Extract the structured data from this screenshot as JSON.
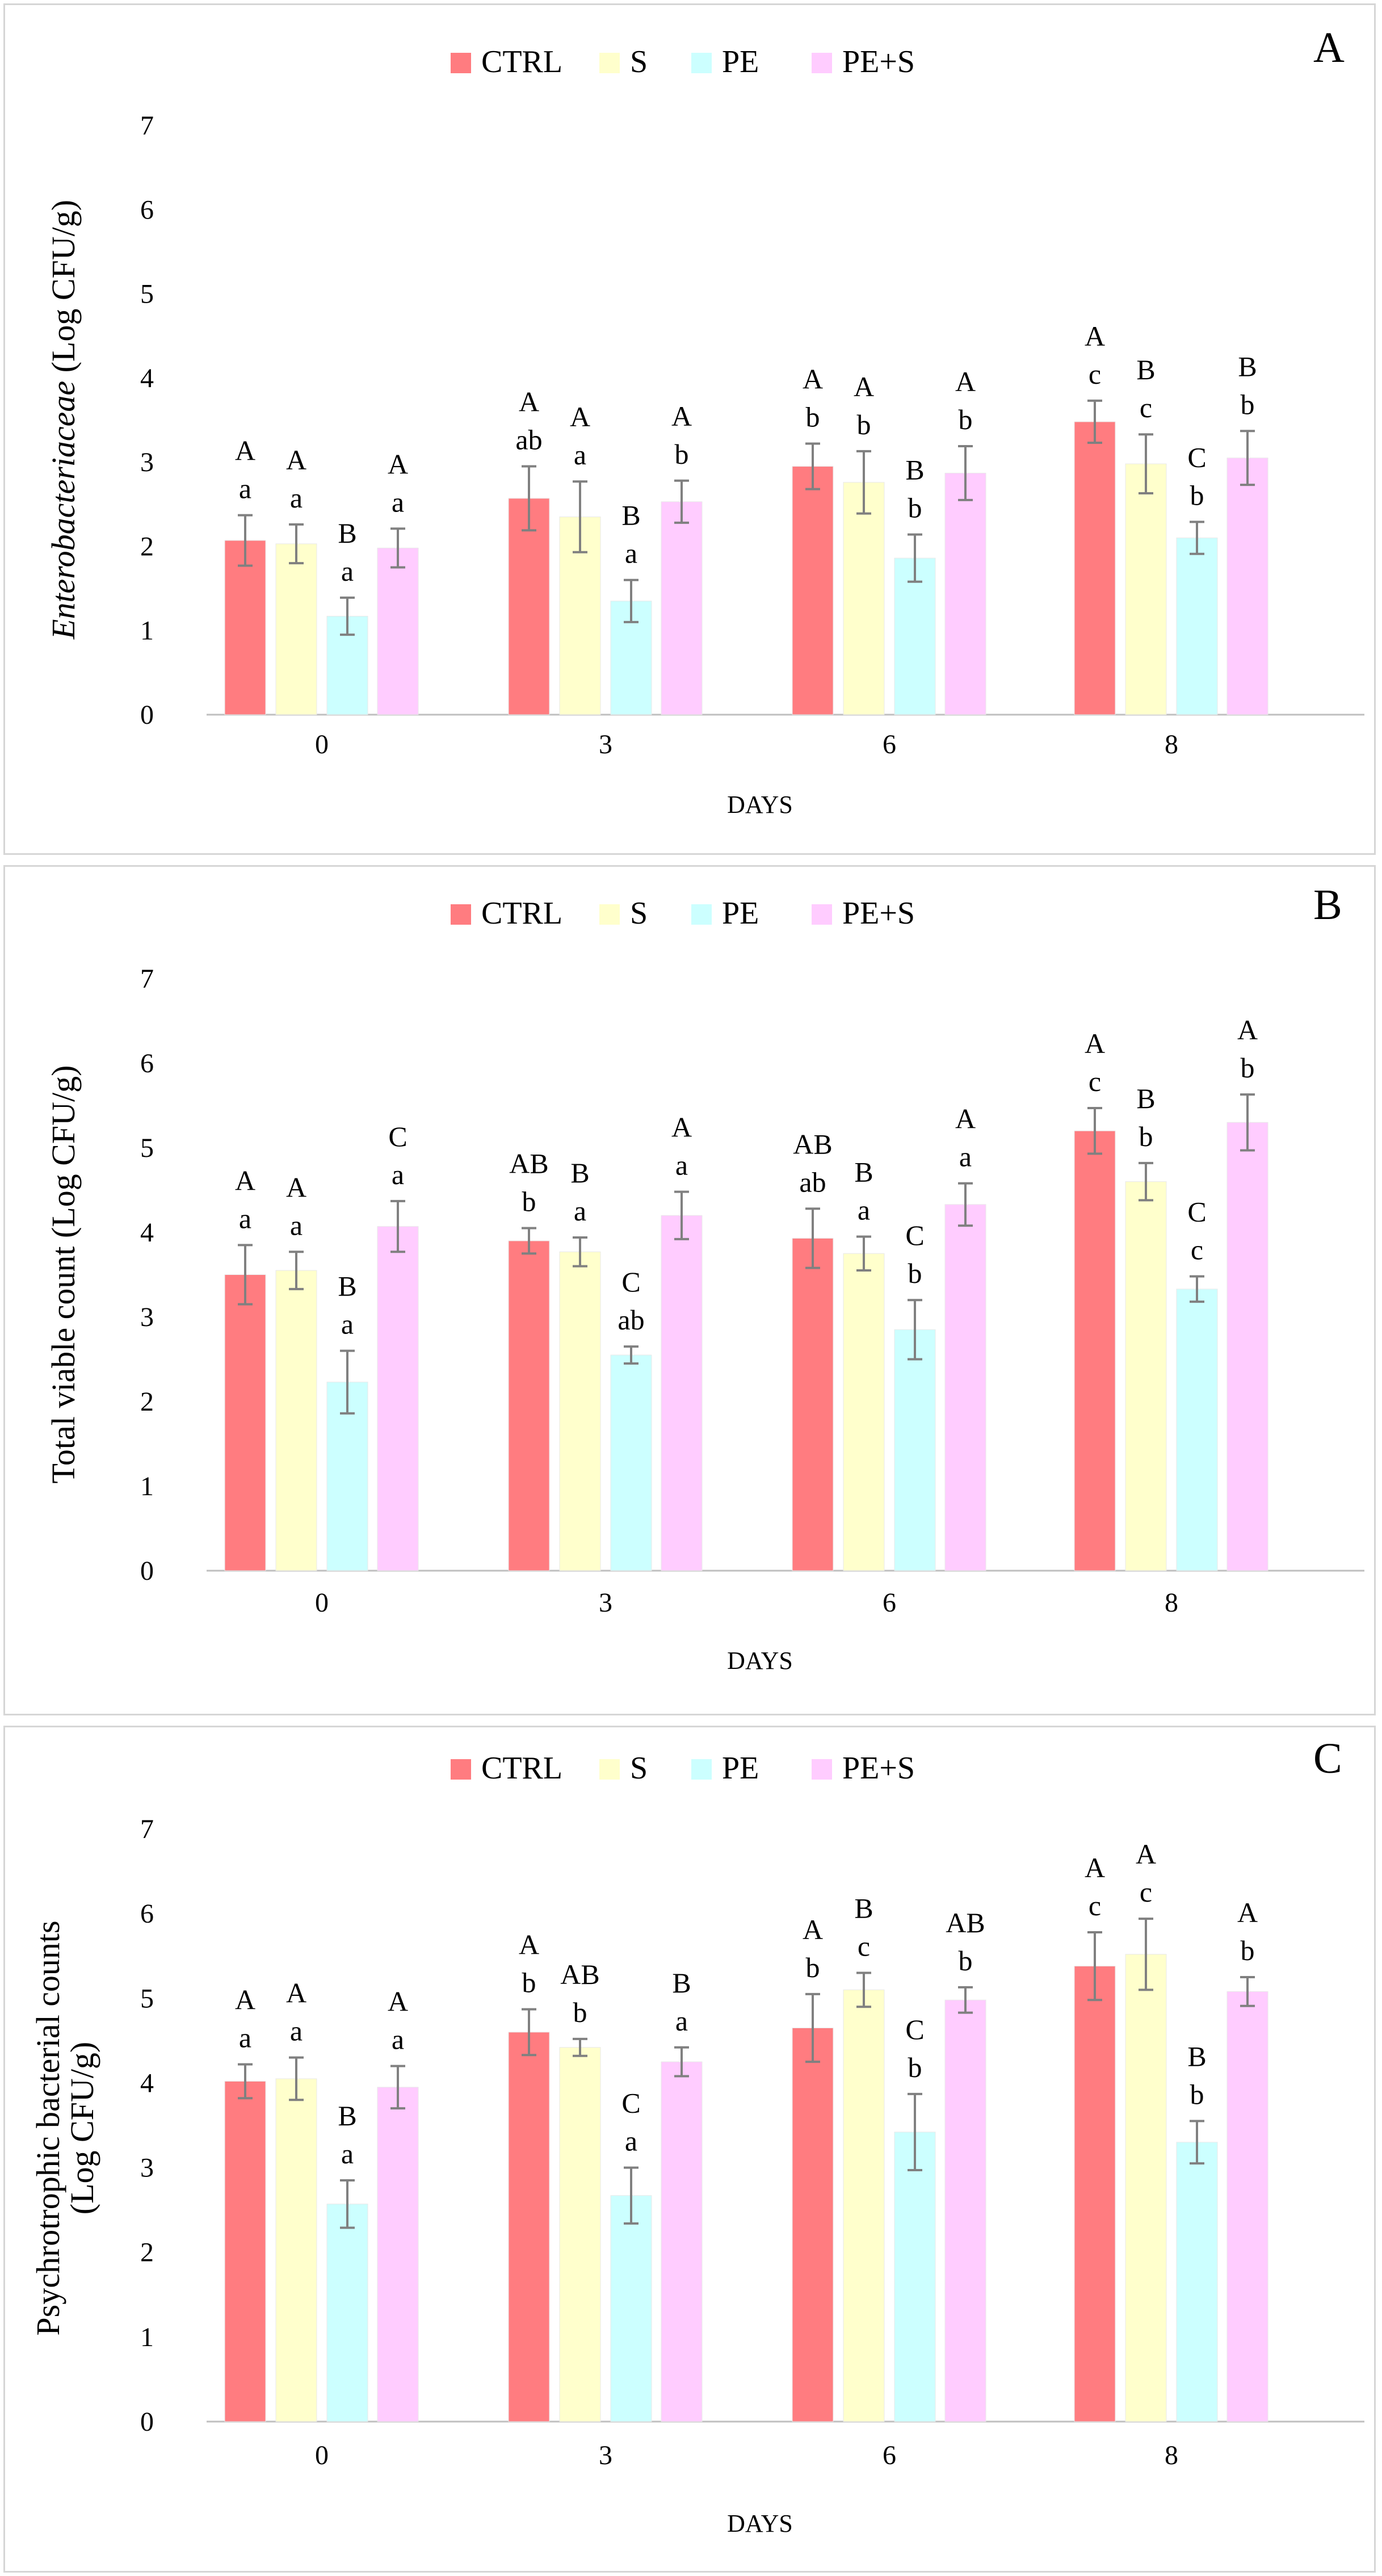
{
  "legend": [
    "CTRL",
    "S",
    "PE",
    "PE+S"
  ],
  "colors": {
    "CTRL": "#ff7c80",
    "S": "#ffffcc",
    "PE": "#ccffff",
    "PE+S": "#ffccff",
    "axis": "#bfbfbf",
    "error_bar": "#808080",
    "text": "#000000"
  },
  "chart_data": [
    {
      "panel": "A",
      "type": "bar",
      "title": "",
      "xlabel": "DAYS",
      "ylabel": "Enterobacteriaceae (Log CFU/g)",
      "ylabel_italic": "Enterobacteriaceae",
      "ylabel_rest": " (Log CFU/g)",
      "ylim": [
        0,
        7
      ],
      "yticks": [
        "0",
        "1",
        "2",
        "3",
        "4",
        "5",
        "6",
        "7"
      ],
      "categories": [
        "0",
        "3",
        "6",
        "8"
      ],
      "series": [
        {
          "name": "CTRL",
          "values": [
            2.07,
            2.57,
            2.95,
            3.48
          ],
          "errors": [
            0.3,
            0.38,
            0.27,
            0.25
          ],
          "labels_upper": [
            "A",
            "A",
            "A",
            "A"
          ],
          "labels_lower": [
            "a",
            "ab",
            "b",
            "c"
          ]
        },
        {
          "name": "S",
          "values": [
            2.03,
            2.35,
            2.76,
            2.98
          ],
          "errors": [
            0.23,
            0.42,
            0.37,
            0.35
          ],
          "labels_upper": [
            "A",
            "A",
            "A",
            "B"
          ],
          "labels_lower": [
            "a",
            "a",
            "b",
            "c"
          ]
        },
        {
          "name": "PE",
          "values": [
            1.17,
            1.35,
            1.86,
            2.1
          ],
          "errors": [
            0.22,
            0.25,
            0.28,
            0.19
          ],
          "labels_upper": [
            "B",
            "B",
            "B",
            "C"
          ],
          "labels_lower": [
            "a",
            "a",
            "b",
            "b"
          ]
        },
        {
          "name": "PE+S",
          "values": [
            1.98,
            2.53,
            2.87,
            3.05
          ],
          "errors": [
            0.23,
            0.25,
            0.32,
            0.32
          ],
          "labels_upper": [
            "A",
            "A",
            "A",
            "B"
          ],
          "labels_lower": [
            "a",
            "b",
            "b",
            "b"
          ]
        }
      ]
    },
    {
      "panel": "B",
      "type": "bar",
      "title": "",
      "xlabel": "DAYS",
      "ylabel": "Total viable count (Log CFU/g)",
      "ylim": [
        0,
        7
      ],
      "yticks": [
        "0",
        "1",
        "2",
        "3",
        "4",
        "5",
        "6",
        "7"
      ],
      "categories": [
        "0",
        "3",
        "6",
        "8"
      ],
      "series": [
        {
          "name": "CTRL",
          "values": [
            3.5,
            3.9,
            3.93,
            5.2
          ],
          "errors": [
            0.35,
            0.15,
            0.35,
            0.27
          ],
          "labels_upper": [
            "A",
            "AB",
            "AB",
            "A"
          ],
          "labels_lower": [
            "a",
            "b",
            "ab",
            "c"
          ]
        },
        {
          "name": "S",
          "values": [
            3.55,
            3.77,
            3.75,
            4.6
          ],
          "errors": [
            0.22,
            0.17,
            0.2,
            0.22
          ],
          "labels_upper": [
            "A",
            "B",
            "B",
            "B"
          ],
          "labels_lower": [
            "a",
            "a",
            "a",
            "b"
          ]
        },
        {
          "name": "PE",
          "values": [
            2.23,
            2.55,
            2.85,
            3.33
          ],
          "errors": [
            0.37,
            0.1,
            0.35,
            0.15
          ],
          "labels_upper": [
            "B",
            "C",
            "C",
            "C"
          ],
          "labels_lower": [
            "a",
            "ab",
            "b",
            "c"
          ]
        },
        {
          "name": "PE+S",
          "values": [
            4.07,
            4.2,
            4.33,
            5.3
          ],
          "errors": [
            0.3,
            0.28,
            0.25,
            0.33
          ],
          "labels_upper": [
            "C",
            "A",
            "A",
            "A"
          ],
          "labels_lower": [
            "a",
            "a",
            "a",
            "b"
          ]
        }
      ]
    },
    {
      "panel": "C",
      "type": "bar",
      "title": "",
      "xlabel": "DAYS",
      "ylabel_line1": "Psychrotrophic bacterial counts",
      "ylabel_line2": "(Log CFU/g)",
      "ylim": [
        0,
        7
      ],
      "yticks": [
        "0",
        "1",
        "2",
        "3",
        "4",
        "5",
        "6",
        "7"
      ],
      "categories": [
        "0",
        "3",
        "6",
        "8"
      ],
      "series": [
        {
          "name": "CTRL",
          "values": [
            4.02,
            4.6,
            4.65,
            5.38
          ],
          "errors": [
            0.2,
            0.27,
            0.4,
            0.4
          ],
          "labels_upper": [
            "A",
            "A",
            "A",
            "A"
          ],
          "labels_lower": [
            "a",
            "b",
            "b",
            "c"
          ]
        },
        {
          "name": "S",
          "values": [
            4.05,
            4.42,
            5.1,
            5.52
          ],
          "errors": [
            0.25,
            0.1,
            0.2,
            0.42
          ],
          "labels_upper": [
            "A",
            "AB",
            "B",
            "A"
          ],
          "labels_lower": [
            "a",
            "b",
            "c",
            "c"
          ]
        },
        {
          "name": "PE",
          "values": [
            2.57,
            2.67,
            3.42,
            3.3
          ],
          "errors": [
            0.28,
            0.33,
            0.45,
            0.25
          ],
          "labels_upper": [
            "B",
            "C",
            "C",
            "B"
          ],
          "labels_lower": [
            "a",
            "a",
            "b",
            "b"
          ]
        },
        {
          "name": "PE+S",
          "values": [
            3.95,
            4.25,
            4.98,
            5.08
          ],
          "errors": [
            0.25,
            0.17,
            0.15,
            0.17
          ],
          "labels_upper": [
            "A",
            "B",
            "AB",
            "A"
          ],
          "labels_lower": [
            "a",
            "a",
            "b",
            "b"
          ]
        }
      ]
    }
  ]
}
